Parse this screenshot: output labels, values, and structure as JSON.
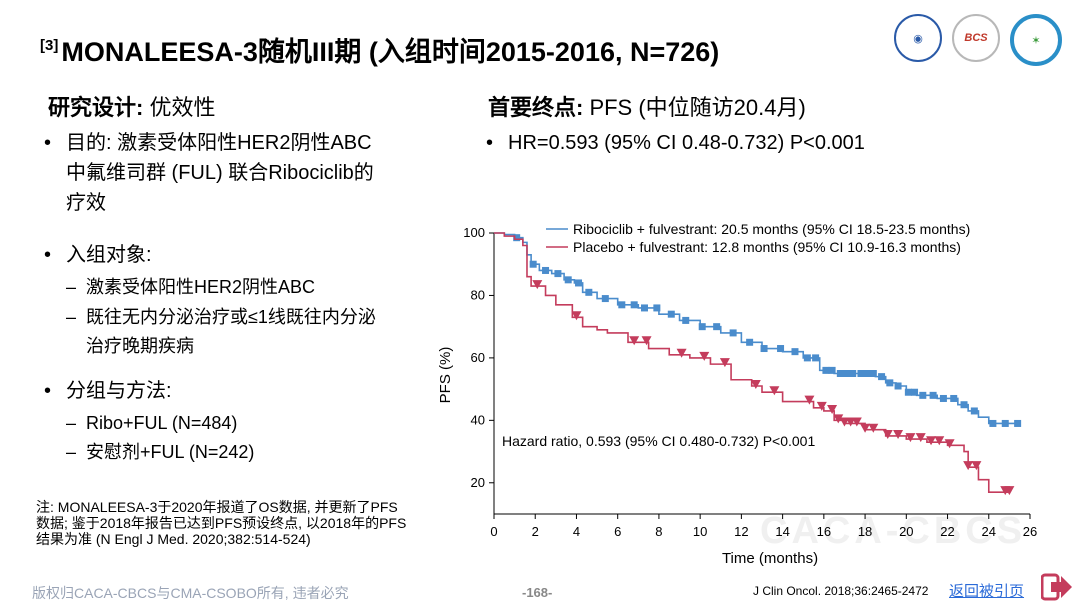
{
  "slide": {
    "ref": "[3]",
    "title": "MONALEESA-3随机III期 (入组时间2015-2016, N=726)",
    "left_heading_bold": "研究设计:",
    "left_heading_rest": " 优效性",
    "right_heading_bold": "首要终点:",
    "right_heading_rest": " PFS (中位随访20.4月)",
    "bullet_dot": "•",
    "sub_dash": "–",
    "purpose_line1": "目的: 激素受体阳性HER2阴性ABC",
    "purpose_line2": "中氟维司群 (FUL) 联合Ribociclib的",
    "purpose_line3": "疗效",
    "enroll_label": "入组对象:",
    "enroll_sub1": "激素受体阳性HER2阴性ABC",
    "enroll_sub2_line1": "既往无内分泌治疗或≤1线既往内分泌",
    "enroll_sub2_line2": "治疗晚期疾病",
    "group_label": "分组与方法:",
    "group_sub1": "Ribo+FUL (N=484)",
    "group_sub2": "安慰剂+FUL (N=242)",
    "hr_bullet": "HR=0.593 (95% CI 0.48-0.732) P<0.001",
    "note_line1": "注: MONALEESA-3于2020年报道了OS数据, 并更新了PFS",
    "note_line2": "数据; 鉴于2018年报告已达到PFS预设终点, 以2018年的PFS",
    "note_line3": "结果为准 (N Engl J Med. 2020;382:514-524)",
    "footer_copyright": "版权归CACA-CBCS与CMA-CSOBO所有, 违者必究",
    "page_number": "-168-",
    "citation": "J Clin Oncol. 2018;36:2465-2472",
    "return_link": "返回被引页",
    "watermark": "CACA-CBCS",
    "logo2_text": "BCS"
  },
  "colors": {
    "ribo": "#4a8ccc",
    "placebo": "#c43c5c"
  },
  "chart_data": {
    "type": "line",
    "title": "",
    "xlabel": "Time (months)",
    "ylabel": "PFS (%)",
    "xlim": [
      0,
      26
    ],
    "ylim": [
      10,
      100
    ],
    "xticks": [
      0,
      2,
      4,
      6,
      8,
      10,
      12,
      14,
      16,
      18,
      20,
      22,
      24,
      26
    ],
    "yticks": [
      20,
      40,
      60,
      80,
      100
    ],
    "annotation": "Hazard ratio, 0.593 (95% CI 0.480-0.732) P<0.001",
    "legend_position": "top-right",
    "series": [
      {
        "name": "Ribociclib + fulvestrant: 20.5 months (95% CI 18.5-23.5 months)",
        "color": "#4a8ccc",
        "marker": "square",
        "points": [
          [
            0,
            100
          ],
          [
            0.5,
            99.5
          ],
          [
            1,
            98.5
          ],
          [
            1.4,
            97
          ],
          [
            1.6,
            93
          ],
          [
            1.8,
            90
          ],
          [
            2.2,
            88
          ],
          [
            2.8,
            87
          ],
          [
            3.4,
            85
          ],
          [
            3.9,
            84
          ],
          [
            4.3,
            81
          ],
          [
            5,
            79
          ],
          [
            6,
            77
          ],
          [
            7,
            76
          ],
          [
            8,
            74
          ],
          [
            9,
            72
          ],
          [
            10,
            70
          ],
          [
            11,
            68
          ],
          [
            12,
            65
          ],
          [
            13,
            63
          ],
          [
            14,
            62
          ],
          [
            15,
            60
          ],
          [
            15.8,
            56
          ],
          [
            16.5,
            55
          ],
          [
            17.5,
            55
          ],
          [
            18.5,
            54
          ],
          [
            19,
            52
          ],
          [
            19.5,
            51
          ],
          [
            20,
            49
          ],
          [
            20.5,
            48
          ],
          [
            21.5,
            47
          ],
          [
            22.5,
            45
          ],
          [
            23,
            43
          ],
          [
            23.5,
            41
          ],
          [
            24,
            39
          ],
          [
            25.5,
            39
          ]
        ],
        "censor_x": [
          1.1,
          1.9,
          2.5,
          3.1,
          3.6,
          4.1,
          4.6,
          5.4,
          6.2,
          6.8,
          7.3,
          7.9,
          8.6,
          9.3,
          10.1,
          10.8,
          11.6,
          12.4,
          13.1,
          13.9,
          14.6,
          15.2,
          15.6,
          16.1,
          16.4,
          16.8,
          17.1,
          17.4,
          17.8,
          18.1,
          18.4,
          18.8,
          19.2,
          19.6,
          20.1,
          20.4,
          20.8,
          21.3,
          21.8,
          22.3,
          22.8,
          23.3,
          24.2,
          24.8,
          25.4
        ]
      },
      {
        "name": "Placebo + fulvestrant: 12.8 months (95% CI 10.9-16.3 months)",
        "color": "#c43c5c",
        "marker": "triangle-down",
        "points": [
          [
            0,
            100
          ],
          [
            0.5,
            99
          ],
          [
            1,
            98
          ],
          [
            1.4,
            96
          ],
          [
            1.6,
            86
          ],
          [
            1.8,
            83
          ],
          [
            2.5,
            80
          ],
          [
            3,
            77
          ],
          [
            3.8,
            73
          ],
          [
            4.3,
            70
          ],
          [
            5,
            69
          ],
          [
            5.5,
            68
          ],
          [
            6.5,
            65
          ],
          [
            7.5,
            63
          ],
          [
            8.5,
            61
          ],
          [
            9.5,
            60
          ],
          [
            10.5,
            58
          ],
          [
            11.5,
            53
          ],
          [
            12.5,
            51
          ],
          [
            13,
            49
          ],
          [
            14,
            46
          ],
          [
            15.5,
            44
          ],
          [
            16,
            43
          ],
          [
            16.5,
            40
          ],
          [
            17,
            39
          ],
          [
            18,
            37
          ],
          [
            19,
            35
          ],
          [
            20,
            34
          ],
          [
            21,
            33
          ],
          [
            22,
            32
          ],
          [
            22.8,
            30
          ],
          [
            23,
            25
          ],
          [
            23.5,
            21
          ],
          [
            24,
            17
          ],
          [
            25,
            17
          ]
        ],
        "censor_x": [
          2.1,
          4.0,
          6.8,
          7.4,
          9.1,
          10.2,
          11.2,
          12.7,
          13.6,
          15.3,
          15.9,
          16.4,
          16.7,
          17.0,
          17.3,
          17.6,
          18.0,
          18.4,
          19.1,
          19.6,
          20.2,
          20.7,
          21.2,
          21.6,
          22.1,
          23.0,
          23.4,
          24.8,
          25.0
        ]
      }
    ]
  }
}
